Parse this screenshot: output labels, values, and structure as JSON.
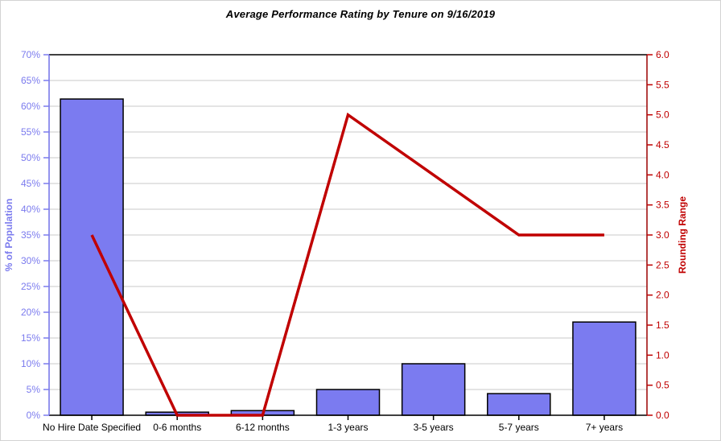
{
  "window": {
    "background": "#ffffff",
    "border_color": "#d3d3d3"
  },
  "chart_data": {
    "type": "combo",
    "title": "Average Performance Rating by Tenure on 9/16/2019",
    "categories": [
      "No Hire Date Specified",
      "0-6 months",
      "6-12 months",
      "1-3 years",
      "3-5 years",
      "5-7 years",
      "7+ years"
    ],
    "series": [
      {
        "name": "% of Population",
        "type": "bar",
        "axis": "left",
        "color": "#7b7bf0",
        "border_color": "#000000",
        "values": [
          61.4,
          0.6,
          0.9,
          5.0,
          10.0,
          4.2,
          18.1
        ]
      },
      {
        "name": "Rounding Range",
        "type": "line",
        "axis": "right",
        "color": "#c00000",
        "values": [
          3.0,
          0.0,
          0.0,
          5.0,
          4.0,
          3.0,
          3.0
        ]
      }
    ],
    "axes": {
      "left": {
        "title": "% of Population",
        "min": 0,
        "max": 70,
        "step": 5,
        "color": "#7b7bee",
        "spine_color": "#7070e8",
        "tick_labels": [
          "0%",
          "5%",
          "10%",
          "15%",
          "20%",
          "25%",
          "30%",
          "35%",
          "40%",
          "45%",
          "50%",
          "55%",
          "60%",
          "65%",
          "70%"
        ]
      },
      "right": {
        "title": "Rounding Range",
        "min": 0,
        "max": 6,
        "step": 0.5,
        "color": "#c00000",
        "spine_color": "#9b0000",
        "tick_labels": [
          "0.0",
          "0.5",
          "1.0",
          "1.5",
          "2.0",
          "2.5",
          "3.0",
          "3.5",
          "4.0",
          "4.5",
          "5.0",
          "5.5",
          "6.0"
        ]
      },
      "bottom": {
        "color": "#000000"
      }
    },
    "grid": {
      "show": true,
      "color": "#c9c9c9"
    },
    "legend": {
      "show": false
    }
  }
}
